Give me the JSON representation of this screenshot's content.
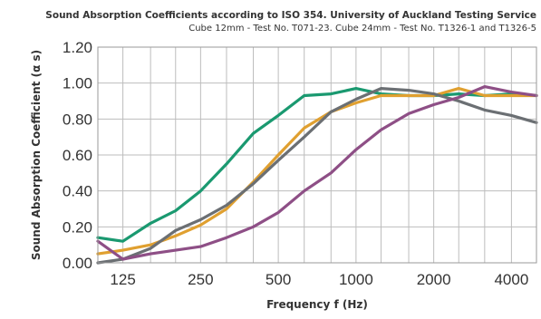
{
  "chart_data": {
    "type": "line",
    "title": "Sound Absorption Coefficients according to ISO 354. University of Auckland Testing Service",
    "subtitle": "Cube 12mm - Test No. T071-23. Cube 24mm - Test No. T1326-1 and  T1326-5",
    "xlabel": "Frequency f (Hz)",
    "ylabel": "Sound Absorption Coefficient (α s)",
    "x_scale": "log",
    "xlim": [
      100,
      5000
    ],
    "ylim": [
      0,
      1.2
    ],
    "x_ticks": [
      125,
      250,
      500,
      1000,
      2000,
      4000
    ],
    "x_tick_labels": [
      "125",
      "250",
      "500",
      "1000",
      "2000",
      "4000"
    ],
    "y_ticks": [
      0,
      0.2,
      0.4,
      0.6,
      0.8,
      1.0,
      1.2
    ],
    "y_tick_labels": [
      "0.00",
      "0.20",
      "0.40",
      "0.60",
      "0.80",
      "1.00",
      "1.20"
    ],
    "grid": true,
    "legend": "none",
    "x": [
      100,
      125,
      160,
      200,
      250,
      315,
      400,
      500,
      630,
      800,
      1000,
      1250,
      1600,
      2000,
      2500,
      3150,
      4000,
      5000
    ],
    "series": [
      {
        "color": "#1a9970",
        "values": [
          0.14,
          0.12,
          0.22,
          0.29,
          0.4,
          0.55,
          0.72,
          0.82,
          0.93,
          0.94,
          0.97,
          0.94,
          0.93,
          0.93,
          0.94,
          0.93,
          0.94,
          0.93
        ]
      },
      {
        "color": "#e0a030",
        "values": [
          0.05,
          0.07,
          0.1,
          0.15,
          0.21,
          0.3,
          0.45,
          0.6,
          0.75,
          0.84,
          0.89,
          0.93,
          0.93,
          0.93,
          0.97,
          0.93,
          0.93,
          0.93
        ]
      },
      {
        "color": "#6b6f73",
        "values": [
          0.0,
          0.02,
          0.08,
          0.18,
          0.24,
          0.32,
          0.44,
          0.57,
          0.7,
          0.84,
          0.91,
          0.97,
          0.96,
          0.94,
          0.9,
          0.85,
          0.82,
          0.78
        ]
      },
      {
        "color": "#8e4f86",
        "values": [
          0.12,
          0.02,
          0.05,
          0.07,
          0.09,
          0.14,
          0.2,
          0.28,
          0.4,
          0.5,
          0.63,
          0.74,
          0.83,
          0.88,
          0.92,
          0.98,
          0.95,
          0.93
        ]
      }
    ]
  }
}
